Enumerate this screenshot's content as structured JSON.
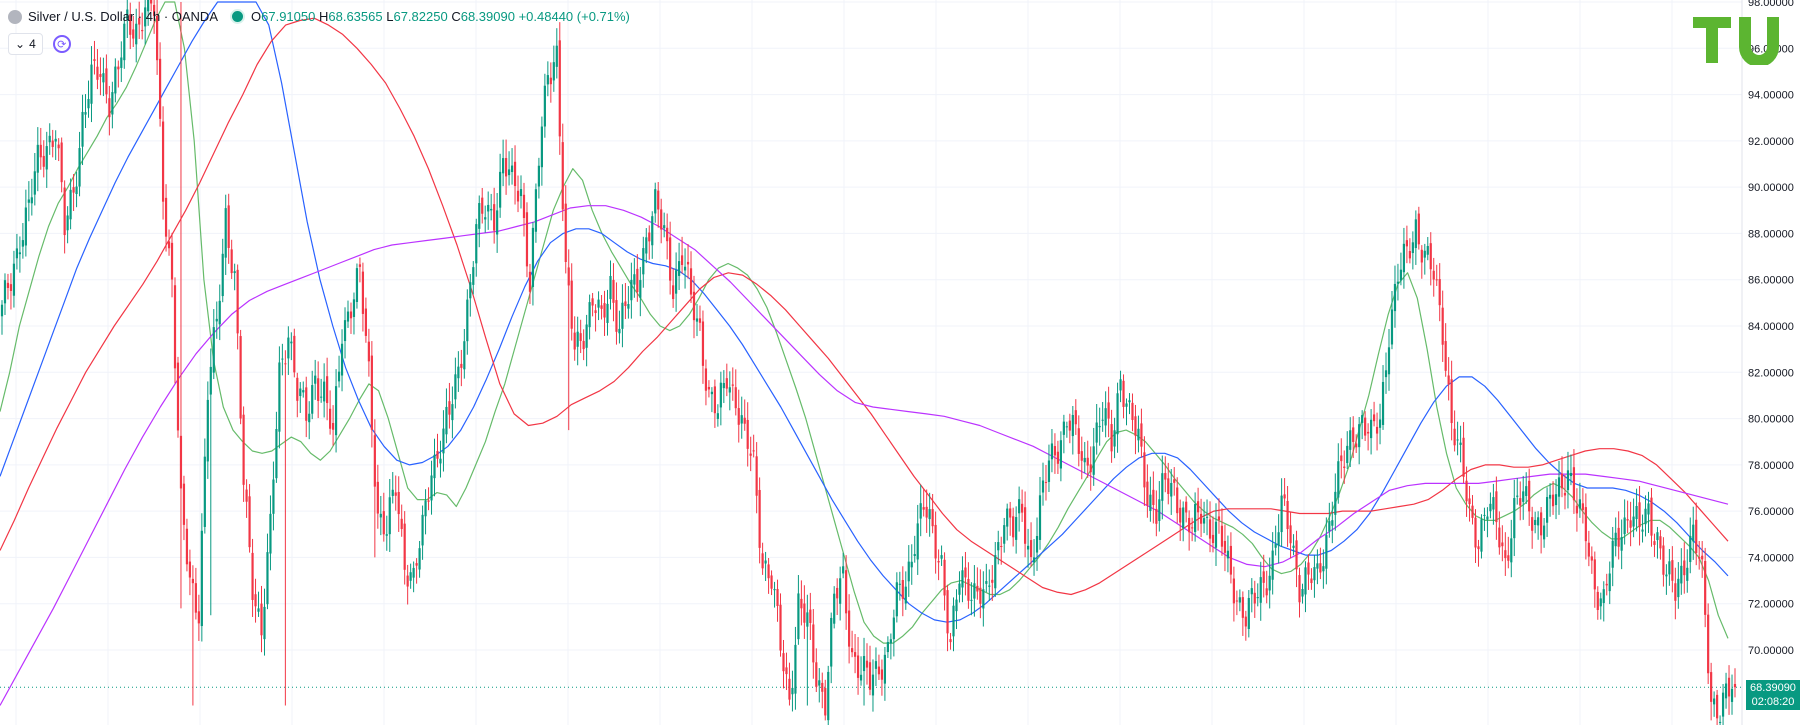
{
  "header": {
    "symbol": "Silver / U.S. Dollar · 4h · OANDA",
    "open_label": "O",
    "open": "67.91050",
    "high_label": "H",
    "high": "68.63565",
    "low_label": "L",
    "low": "67.82250",
    "close_label": "C",
    "close": "68.39090",
    "change": "+0.48440 (+0.71%)"
  },
  "indicators": {
    "count": "4"
  },
  "price_tag": {
    "price": "68.39090",
    "countdown": "02:08:20"
  },
  "colors": {
    "up": "#089981",
    "down": "#f23645",
    "ma_green": "#66bb6a",
    "ma_blue": "#2962ff",
    "ma_red": "#f23645",
    "ma_violet": "#bb33ff",
    "logo": "#5cb531"
  },
  "chart_data": {
    "type": "candlestick",
    "y_axis_labels": [
      "98.00000",
      "96.00000",
      "94.00000",
      "92.00000",
      "90.00000",
      "88.00000",
      "86.00000",
      "84.00000",
      "82.00000",
      "80.00000",
      "78.00000",
      "76.00000",
      "74.00000",
      "72.00000",
      "70.00000"
    ],
    "ylim": [
      67.6,
      98.0
    ],
    "last_price": 68.3909,
    "anchors": [
      [
        0,
        84.5
      ],
      [
        3,
        86
      ],
      [
        6,
        88
      ],
      [
        9,
        89
      ],
      [
        12,
        91
      ],
      [
        15,
        92
      ],
      [
        18,
        92.5
      ],
      [
        21,
        88
      ],
      [
        24,
        90
      ],
      [
        27,
        93
      ],
      [
        30,
        94.5
      ],
      [
        33,
        95
      ],
      [
        36,
        94
      ],
      [
        39,
        95
      ],
      [
        42,
        97
      ],
      [
        45,
        97
      ],
      [
        48,
        97.8
      ],
      [
        51,
        97.5
      ],
      [
        54,
        90
      ],
      [
        57,
        86
      ],
      [
        60,
        76
      ],
      [
        63,
        73
      ],
      [
        66,
        72
      ],
      [
        69,
        81
      ],
      [
        72,
        84
      ],
      [
        75,
        89
      ],
      [
        78,
        86
      ],
      [
        81,
        77
      ],
      [
        84,
        73
      ],
      [
        87,
        71
      ],
      [
        90,
        75
      ],
      [
        93,
        82
      ],
      [
        96,
        84
      ],
      [
        99,
        81
      ],
      [
        102,
        80
      ],
      [
        105,
        82
      ],
      [
        108,
        81
      ],
      [
        111,
        79
      ],
      [
        114,
        84
      ],
      [
        117,
        85
      ],
      [
        120,
        86
      ],
      [
        123,
        82
      ],
      [
        126,
        76
      ],
      [
        129,
        75
      ],
      [
        132,
        77
      ],
      [
        135,
        74
      ],
      [
        138,
        73
      ],
      [
        141,
        75
      ],
      [
        144,
        78
      ],
      [
        147,
        79
      ],
      [
        150,
        80
      ],
      [
        153,
        82
      ],
      [
        156,
        85
      ],
      [
        159,
        88
      ],
      [
        162,
        89
      ],
      [
        165,
        89
      ],
      [
        168,
        91
      ],
      [
        171,
        90
      ],
      [
        174,
        90
      ],
      [
        177,
        86
      ],
      [
        180,
        91
      ],
      [
        183,
        95
      ],
      [
        186,
        96
      ],
      [
        189,
        86
      ],
      [
        192,
        83
      ],
      [
        195,
        84
      ],
      [
        198,
        85
      ],
      [
        201,
        84
      ],
      [
        204,
        86
      ],
      [
        207,
        84
      ],
      [
        210,
        85
      ],
      [
        213,
        86
      ],
      [
        216,
        88
      ],
      [
        219,
        89
      ],
      [
        222,
        88
      ],
      [
        225,
        86
      ],
      [
        228,
        87
      ],
      [
        231,
        85
      ],
      [
        234,
        84
      ],
      [
        237,
        81
      ],
      [
        240,
        80
      ],
      [
        243,
        82
      ],
      [
        246,
        81
      ],
      [
        249,
        79
      ],
      [
        252,
        78
      ],
      [
        255,
        74
      ],
      [
        258,
        73
      ],
      [
        261,
        70
      ],
      [
        264,
        68
      ],
      [
        267,
        72
      ],
      [
        270,
        71
      ],
      [
        273,
        69
      ],
      [
        276,
        68
      ],
      [
        279,
        72
      ],
      [
        282,
        73
      ],
      [
        285,
        70
      ],
      [
        288,
        69
      ],
      [
        291,
        68.5
      ],
      [
        294,
        69.5
      ],
      [
        297,
        70
      ],
      [
        300,
        72
      ],
      [
        303,
        73
      ],
      [
        306,
        75
      ],
      [
        309,
        76
      ],
      [
        312,
        75
      ],
      [
        315,
        74
      ],
      [
        318,
        70
      ],
      [
        321,
        73
      ],
      [
        324,
        73
      ],
      [
        327,
        72.5
      ],
      [
        330,
        72
      ],
      [
        333,
        74
      ],
      [
        336,
        76
      ],
      [
        339,
        75
      ],
      [
        342,
        76
      ],
      [
        345,
        74
      ],
      [
        348,
        76
      ],
      [
        351,
        78
      ],
      [
        354,
        79
      ],
      [
        357,
        80
      ],
      [
        360,
        79
      ],
      [
        363,
        78
      ],
      [
        366,
        79
      ],
      [
        369,
        80
      ],
      [
        372,
        79
      ],
      [
        375,
        82
      ],
      [
        378,
        80
      ],
      [
        381,
        79
      ],
      [
        384,
        77
      ],
      [
        387,
        76
      ],
      [
        390,
        77
      ],
      [
        393,
        77
      ],
      [
        396,
        76
      ],
      [
        399,
        75
      ],
      [
        402,
        76
      ],
      [
        405,
        75.5
      ],
      [
        408,
        75
      ],
      [
        411,
        73.5
      ],
      [
        414,
        72.5
      ],
      [
        417,
        71.5
      ],
      [
        420,
        72
      ],
      [
        423,
        73
      ],
      [
        426,
        74
      ],
      [
        429,
        76
      ],
      [
        432,
        75
      ],
      [
        435,
        73
      ],
      [
        438,
        73
      ],
      [
        441,
        73
      ],
      [
        444,
        75
      ],
      [
        447,
        77
      ],
      [
        450,
        78
      ],
      [
        453,
        79.5
      ],
      [
        456,
        80
      ],
      [
        459,
        79
      ],
      [
        462,
        80
      ],
      [
        465,
        84
      ],
      [
        468,
        86
      ],
      [
        471,
        87
      ],
      [
        474,
        88.5
      ],
      [
        477,
        87
      ],
      [
        480,
        86
      ],
      [
        483,
        84
      ],
      [
        486,
        80
      ],
      [
        489,
        78
      ],
      [
        492,
        76
      ],
      [
        495,
        75
      ],
      [
        498,
        76
      ],
      [
        501,
        75.5
      ],
      [
        504,
        74
      ],
      [
        507,
        76
      ],
      [
        510,
        76.5
      ],
      [
        513,
        76
      ],
      [
        516,
        75.5
      ],
      [
        519,
        76
      ],
      [
        522,
        77
      ],
      [
        525,
        78
      ],
      [
        528,
        76
      ],
      [
        531,
        75
      ],
      [
        534,
        73
      ],
      [
        537,
        72
      ],
      [
        540,
        74
      ],
      [
        543,
        75.5
      ],
      [
        546,
        76
      ],
      [
        549,
        75
      ],
      [
        552,
        76
      ],
      [
        555,
        75
      ],
      [
        558,
        73
      ],
      [
        561,
        72.5
      ],
      [
        564,
        74
      ],
      [
        567,
        75
      ],
      [
        570,
        73
      ],
      [
        573,
        68
      ],
      [
        576,
        67.5
      ],
      [
        579,
        68
      ],
      [
        581,
        68.39
      ]
    ],
    "wicks_notable": [
      [
        40,
        96.3
      ],
      [
        60,
        98.0
      ],
      [
        60,
        71.8
      ],
      [
        64,
        67.6
      ],
      [
        70,
        71.5
      ],
      [
        95,
        67.6
      ],
      [
        125,
        74.0
      ],
      [
        186,
        96.5
      ],
      [
        190,
        79.5
      ],
      [
        270,
        67.6
      ],
      [
        289,
        67.6
      ]
    ],
    "bars": 582,
    "series": [
      {
        "color": "#66bb6a",
        "values": [
          80.3,
          82.0,
          84.0,
          85.5,
          87.0,
          88.3,
          89.3,
          90.0,
          90.8,
          91.5,
          92.2,
          93.0,
          93.6,
          94.3,
          95.2,
          96.2,
          97.2,
          98.0,
          98.0,
          96.0,
          92.0,
          86.0,
          82.5,
          80.5,
          79.5,
          79.0,
          78.6,
          78.5,
          78.6,
          78.9,
          79.2,
          79.0,
          78.5,
          78.2,
          78.6,
          79.3,
          80.0,
          80.8,
          81.5,
          81.2,
          80.0,
          78.5,
          77.0,
          76.5,
          76.5,
          76.8,
          76.7,
          76.2,
          77.0,
          78.0,
          79.0,
          80.3,
          81.5,
          83.0,
          84.5,
          86.0,
          87.5,
          89.0,
          90.0,
          90.8,
          90.3,
          89.0,
          88.0,
          87.2,
          86.5,
          85.8,
          85.2,
          84.5,
          84.0,
          83.8,
          84.0,
          84.5,
          85.2,
          86.0,
          86.5,
          86.7,
          86.5,
          86.2,
          85.6,
          84.8,
          83.7,
          82.5,
          81.3,
          80.0,
          78.5,
          77.0,
          75.5,
          74.0,
          72.5,
          71.2,
          70.6,
          70.3,
          70.3,
          70.6,
          71.0,
          71.6,
          72.1,
          72.6,
          72.9,
          73.0,
          72.8,
          72.6,
          72.4,
          72.4,
          72.6,
          73.0,
          73.5,
          74.0,
          74.6,
          75.3,
          76.1,
          76.8,
          77.5,
          78.3,
          79.0,
          79.4,
          79.5,
          79.3,
          79.0,
          78.5,
          78.0,
          77.4,
          76.9,
          76.4,
          76.0,
          75.7,
          75.5,
          75.3,
          75.0,
          74.6,
          74.0,
          73.5,
          73.3,
          73.4,
          73.7,
          74.2,
          74.9,
          75.8,
          76.8,
          78.0,
          79.5,
          81.0,
          82.8,
          84.5,
          85.8,
          86.3,
          85.2,
          83.0,
          80.5,
          78.5,
          77.0,
          76.3,
          75.8,
          75.6,
          75.6,
          75.8,
          76.0,
          76.3,
          76.7,
          77.0,
          77.2,
          77.0,
          76.6,
          76.0,
          75.5,
          75.1,
          74.8,
          74.8,
          75.1,
          75.4,
          75.6,
          75.6,
          75.3,
          74.9,
          74.5,
          74.0,
          73.0,
          71.5,
          70.5
        ]
      },
      {
        "color": "#2962ff",
        "values": [
          77.5,
          79.0,
          80.5,
          82.0,
          83.5,
          85.0,
          86.5,
          87.8,
          89.0,
          90.2,
          91.3,
          92.3,
          93.3,
          94.3,
          95.3,
          96.3,
          97.2,
          98.0,
          98.0,
          98.0,
          98.0,
          97.0,
          94.5,
          91.5,
          88.5,
          86.0,
          84.0,
          82.2,
          80.8,
          79.6,
          78.8,
          78.2,
          78.0,
          78.1,
          78.4,
          78.8,
          79.5,
          80.5,
          81.7,
          83.0,
          84.4,
          85.7,
          86.8,
          87.6,
          88.0,
          88.2,
          88.2,
          88.0,
          87.6,
          87.2,
          86.9,
          86.7,
          86.6,
          86.4,
          86.0,
          85.4,
          84.7,
          84.0,
          83.2,
          82.3,
          81.4,
          80.5,
          79.5,
          78.5,
          77.5,
          76.5,
          75.6,
          74.7,
          73.9,
          73.2,
          72.6,
          72.0,
          71.6,
          71.3,
          71.2,
          71.3,
          71.6,
          72.0,
          72.5,
          73.0,
          73.5,
          74.0,
          74.5,
          75.0,
          75.6,
          76.2,
          76.8,
          77.4,
          77.9,
          78.3,
          78.5,
          78.5,
          78.3,
          77.8,
          77.2,
          76.6,
          76.0,
          75.5,
          75.1,
          74.8,
          74.5,
          74.3,
          74.1,
          74.1,
          74.3,
          74.7,
          75.2,
          75.9,
          76.8,
          77.8,
          78.8,
          79.8,
          80.7,
          81.4,
          81.8,
          81.8,
          81.4,
          80.8,
          80.1,
          79.4,
          78.7,
          78.1,
          77.6,
          77.2,
          77.0,
          77.0,
          77.0,
          76.9,
          76.7,
          76.4,
          76.0,
          75.5,
          74.9,
          74.3,
          73.8,
          73.2
        ]
      },
      {
        "color": "#f23645",
        "values": [
          74.3,
          75.6,
          77.0,
          78.3,
          79.6,
          80.8,
          82.0,
          83.0,
          84.0,
          84.9,
          85.8,
          86.8,
          87.9,
          89.0,
          90.2,
          91.5,
          92.8,
          94.0,
          95.3,
          96.3,
          97.0,
          97.2,
          97.3,
          97.0,
          96.6,
          96.0,
          95.3,
          94.5,
          93.4,
          92.2,
          90.8,
          89.2,
          87.5,
          85.6,
          83.5,
          81.5,
          80.2,
          79.7,
          79.8,
          80.1,
          80.6,
          80.9,
          81.2,
          81.6,
          82.2,
          82.9,
          83.5,
          84.2,
          84.9,
          85.6,
          86.1,
          86.3,
          86.2,
          85.8,
          85.3,
          84.7,
          84.0,
          83.3,
          82.6,
          81.8,
          81.0,
          80.2,
          79.3,
          78.4,
          77.5,
          76.7,
          75.9,
          75.2,
          74.7,
          74.3,
          73.9,
          73.5,
          73.1,
          72.7,
          72.5,
          72.4,
          72.6,
          72.9,
          73.3,
          73.7,
          74.1,
          74.5,
          74.9,
          75.3,
          75.7,
          76.0,
          76.1,
          76.1,
          76.1,
          76.1,
          76.0,
          75.9,
          75.9,
          75.9,
          76.0,
          76.0,
          76.0,
          76.1,
          76.2,
          76.3,
          76.5,
          76.9,
          77.4,
          77.8,
          78.0,
          78.0,
          77.9,
          77.9,
          78.0,
          78.2,
          78.4,
          78.6,
          78.7,
          78.7,
          78.6,
          78.4,
          78.0,
          77.4,
          76.8,
          76.1,
          75.4,
          74.7
        ]
      },
      {
        "color": "#bb33ff",
        "values": [
          67.6,
          69.0,
          70.4,
          71.8,
          73.3,
          74.8,
          76.3,
          77.8,
          79.2,
          80.5,
          81.7,
          82.8,
          83.7,
          84.5,
          85.1,
          85.5,
          85.8,
          86.1,
          86.4,
          86.7,
          87.0,
          87.3,
          87.5,
          87.6,
          87.7,
          87.8,
          87.9,
          88.0,
          88.1,
          88.3,
          88.5,
          88.8,
          89.1,
          89.2,
          89.2,
          89.0,
          88.7,
          88.3,
          87.8,
          87.3,
          86.6,
          85.9,
          85.1,
          84.3,
          83.5,
          82.7,
          81.9,
          81.2,
          80.7,
          80.5,
          80.4,
          80.3,
          80.2,
          80.1,
          79.9,
          79.7,
          79.4,
          79.1,
          78.8,
          78.4,
          78.0,
          77.6,
          77.2,
          76.8,
          76.4,
          76.0,
          75.5,
          75.0,
          74.5,
          74.0,
          73.7,
          73.6,
          73.8,
          74.2,
          74.8,
          75.3,
          75.9,
          76.4,
          76.9,
          77.1,
          77.2,
          77.2,
          77.2,
          77.2,
          77.3,
          77.4,
          77.5,
          77.6,
          77.6,
          77.6,
          77.5,
          77.4,
          77.3,
          77.1,
          76.9,
          76.7,
          76.5,
          76.3
        ]
      }
    ]
  }
}
